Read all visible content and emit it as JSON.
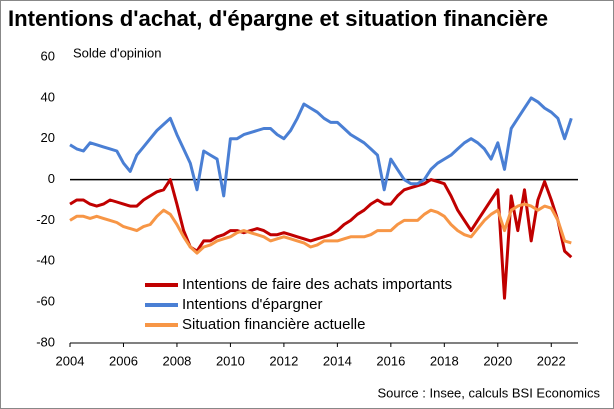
{
  "chart_data": {
    "type": "line",
    "title": "Intentions d'achat, d'épargne et situation financière",
    "y_label": "Solde d'opinion",
    "source": "Source : Insee, calculs BSI Economics",
    "x": [
      2004,
      2004.25,
      2004.5,
      2004.75,
      2005,
      2005.25,
      2005.5,
      2005.75,
      2006,
      2006.25,
      2006.5,
      2006.75,
      2007,
      2007.25,
      2007.5,
      2007.75,
      2008,
      2008.25,
      2008.5,
      2008.75,
      2009,
      2009.25,
      2009.5,
      2009.75,
      2010,
      2010.25,
      2010.5,
      2010.75,
      2011,
      2011.25,
      2011.5,
      2011.75,
      2012,
      2012.25,
      2012.5,
      2012.75,
      2013,
      2013.25,
      2013.5,
      2013.75,
      2014,
      2014.25,
      2014.5,
      2014.75,
      2015,
      2015.25,
      2015.5,
      2015.75,
      2016,
      2016.25,
      2016.5,
      2016.75,
      2017,
      2017.25,
      2017.5,
      2017.75,
      2018,
      2018.25,
      2018.5,
      2018.75,
      2019,
      2019.25,
      2019.5,
      2019.75,
      2020,
      2020.25,
      2020.5,
      2020.75,
      2021,
      2021.25,
      2021.5,
      2021.75,
      2022,
      2022.25,
      2022.5,
      2022.75
    ],
    "series": [
      {
        "name": "Intentions de faire des achats importants",
        "color": "#c00000",
        "values": [
          -12,
          -10,
          -10,
          -12,
          -13,
          -12,
          -10,
          -11,
          -12,
          -13,
          -13,
          -10,
          -8,
          -6,
          -5,
          0,
          -12,
          -25,
          -33,
          -35,
          -30,
          -30,
          -28,
          -27,
          -25,
          -25,
          -26,
          -25,
          -24,
          -25,
          -27,
          -27,
          -26,
          -27,
          -28,
          -29,
          -30,
          -29,
          -28,
          -27,
          -25,
          -22,
          -20,
          -17,
          -15,
          -12,
          -10,
          -12,
          -12,
          -8,
          -5,
          -4,
          -3,
          -2,
          0,
          -1,
          -2,
          -8,
          -15,
          -20,
          -25,
          -20,
          -15,
          -10,
          -5,
          -58,
          -8,
          -25,
          -5,
          -30,
          -10,
          -1,
          -10,
          -20,
          -35,
          -38
        ]
      },
      {
        "name": "Intentions d'épargner",
        "color": "#4a7fd4",
        "values": [
          17,
          15,
          14,
          18,
          17,
          16,
          15,
          14,
          8,
          4,
          12,
          16,
          20,
          24,
          27,
          30,
          22,
          15,
          8,
          -5,
          14,
          12,
          10,
          -8,
          20,
          20,
          22,
          23,
          24,
          25,
          25,
          22,
          20,
          24,
          30,
          37,
          35,
          33,
          30,
          28,
          28,
          25,
          22,
          20,
          18,
          15,
          12,
          -5,
          10,
          5,
          0,
          -2,
          -2,
          0,
          5,
          8,
          10,
          12,
          15,
          18,
          20,
          18,
          15,
          10,
          18,
          5,
          25,
          30,
          35,
          40,
          38,
          35,
          33,
          30,
          20,
          30
        ]
      },
      {
        "name": "Situation financière actuelle",
        "color": "#f79646",
        "values": [
          -20,
          -18,
          -18,
          -19,
          -18,
          -19,
          -20,
          -21,
          -23,
          -24,
          -25,
          -23,
          -22,
          -18,
          -15,
          -17,
          -22,
          -28,
          -33,
          -36,
          -33,
          -32,
          -30,
          -29,
          -28,
          -26,
          -25,
          -26,
          -27,
          -28,
          -30,
          -29,
          -28,
          -29,
          -30,
          -31,
          -33,
          -32,
          -30,
          -30,
          -30,
          -29,
          -28,
          -28,
          -28,
          -27,
          -25,
          -25,
          -25,
          -22,
          -20,
          -20,
          -20,
          -17,
          -15,
          -16,
          -18,
          -22,
          -25,
          -27,
          -28,
          -24,
          -20,
          -17,
          -15,
          -25,
          -15,
          -13,
          -12,
          -13,
          -15,
          -13,
          -14,
          -20,
          -30,
          -31
        ]
      }
    ],
    "xlim": [
      2004,
      2023
    ],
    "xticks": [
      2004,
      2006,
      2008,
      2010,
      2012,
      2014,
      2016,
      2018,
      2020,
      2022
    ],
    "ylim": [
      -80,
      60
    ],
    "yticks": [
      -80,
      -60,
      -40,
      -20,
      0,
      20,
      40,
      60
    ],
    "zero_line": true,
    "grid": false
  }
}
